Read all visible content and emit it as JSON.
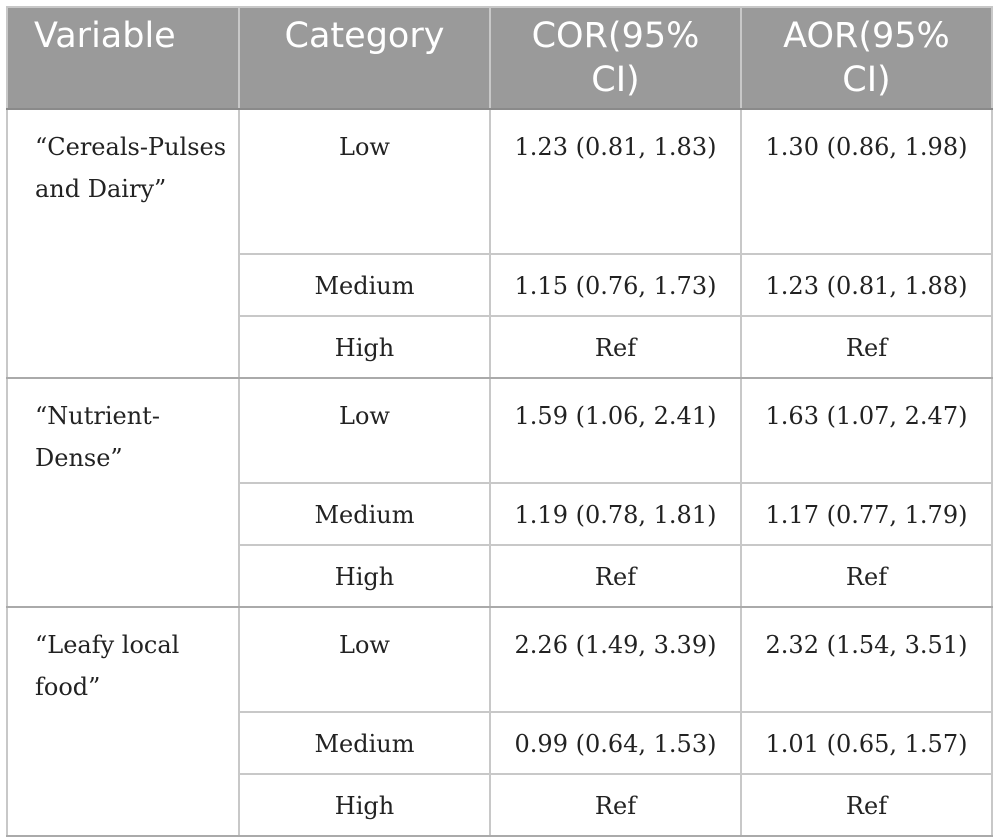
{
  "table": {
    "headers": [
      "Variable",
      "Category",
      "COR(95% CI)",
      "AOR(95% CI)"
    ],
    "groups": [
      {
        "variable": "“Cereals-Pulses and Dairy”",
        "rows": [
          {
            "category": "Low",
            "cor": "1.23 (0.81, 1.83)",
            "aor": "1.30 (0.86, 1.98)"
          },
          {
            "category": "Medium",
            "cor": "1.15 (0.76, 1.73)",
            "aor": "1.23 (0.81, 1.88)"
          },
          {
            "category": "High",
            "cor": "Ref",
            "aor": "Ref"
          }
        ]
      },
      {
        "variable": "“Nutrient-Dense”",
        "rows": [
          {
            "category": "Low",
            "cor": "1.59 (1.06, 2.41)",
            "aor": "1.63 (1.07, 2.47)"
          },
          {
            "category": "Medium",
            "cor": "1.19 (0.78, 1.81)",
            "aor": "1.17 (0.77, 1.79)"
          },
          {
            "category": "High",
            "cor": "Ref",
            "aor": "Ref"
          }
        ]
      },
      {
        "variable": "“Leafy local food”",
        "rows": [
          {
            "category": "Low",
            "cor": "2.26 (1.49, 3.39)",
            "aor": "2.32 (1.54, 3.51)"
          },
          {
            "category": "Medium",
            "cor": "0.99 (0.64, 1.53)",
            "aor": "1.01 (0.65, 1.57)"
          },
          {
            "category": "High",
            "cor": "Ref",
            "aor": "Ref"
          }
        ]
      }
    ]
  }
}
